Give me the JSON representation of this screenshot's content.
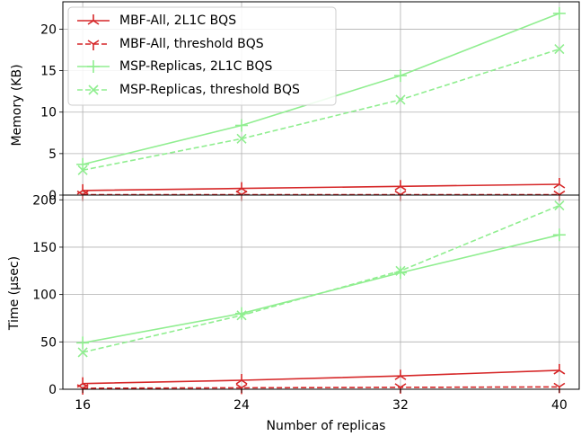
{
  "chart_data": {
    "type": "line",
    "shared_x": {
      "values": [
        16,
        24,
        32,
        40
      ],
      "tick_labels": [
        "16",
        "24",
        "32",
        "40"
      ],
      "xlabel": "Number of replicas"
    },
    "legend": {
      "placement": "upper-left",
      "entries": [
        {
          "label": "MBF-All, 2L1C BQS",
          "color": "#d62728",
          "marker": "tri-down",
          "linestyle": "solid"
        },
        {
          "label": "MBF-All, threshold BQS",
          "color": "#d62728",
          "marker": "tri-up",
          "linestyle": "dashed"
        },
        {
          "label": "MSP-Replicas, 2L1C BQS",
          "color": "#90ee90",
          "marker": "plus",
          "linestyle": "solid"
        },
        {
          "label": "MSP-Replicas, threshold BQS",
          "color": "#90ee90",
          "marker": "x",
          "linestyle": "dashed"
        }
      ]
    },
    "panels": [
      {
        "ylabel": "Memory (KB)",
        "ylim": [
          0,
          23.3
        ],
        "yticks": [
          0,
          5,
          10,
          15,
          20
        ],
        "grid": true,
        "series": [
          {
            "name": "MBF-All, 2L1C BQS",
            "values": [
              0.55,
              0.8,
              1.05,
              1.3
            ]
          },
          {
            "name": "MBF-All, threshold BQS",
            "values": [
              0.05,
              0.05,
              0.05,
              0.05
            ]
          },
          {
            "name": "MSP-Replicas, 2L1C BQS",
            "values": [
              3.7,
              8.4,
              14.4,
              21.9
            ]
          },
          {
            "name": "MSP-Replicas, threshold BQS",
            "values": [
              3.0,
              6.8,
              11.5,
              17.6
            ]
          }
        ]
      },
      {
        "ylabel": "Time (µsec)",
        "ylim": [
          0,
          205
        ],
        "yticks": [
          0,
          50,
          100,
          150,
          200
        ],
        "grid": true,
        "series": [
          {
            "name": "MBF-All, 2L1C BQS",
            "values": [
              6,
              9.5,
              14,
              20
            ]
          },
          {
            "name": "MBF-All, threshold BQS",
            "values": [
              1,
              1.5,
              2,
              2.5
            ]
          },
          {
            "name": "MSP-Replicas, 2L1C BQS",
            "values": [
              49,
              80,
              123,
              163
            ]
          },
          {
            "name": "MSP-Replicas, threshold BQS",
            "values": [
              39,
              78,
              125,
              194
            ]
          }
        ]
      }
    ]
  }
}
